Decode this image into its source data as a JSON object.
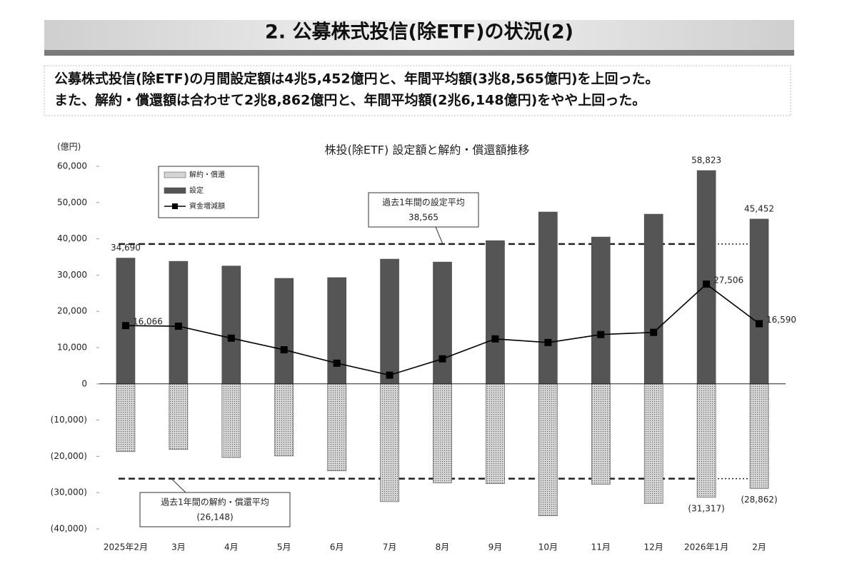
{
  "header": {
    "title": "2. 公募株式投信(除ETF)の状況(2)"
  },
  "summary": [
    "公募株式投信(除ETF)の月間設定額は4兆5,452億円と、年間平均額(3兆8,565億円)を上回った。",
    "また、解約・償還額は合わせて2兆8,862億円と、年間平均額(2兆6,148億円)をやや上回った。"
  ],
  "chart_data": {
    "type": "bar",
    "title": "株投(除ETF) 設定額と解約・償還額推移",
    "y_label": "(億円)",
    "categories": [
      "2025年2月",
      "3月",
      "4月",
      "5月",
      "6月",
      "7月",
      "8月",
      "9月",
      "10月",
      "11月",
      "12月",
      "2026年1月",
      "2月"
    ],
    "series": [
      {
        "name": "解約・償還",
        "type": "bar",
        "color": "#d4d4d4",
        "values": [
          -18700,
          -18100,
          -20300,
          -19900,
          -24000,
          -32500,
          -27300,
          -27500,
          -36400,
          -27700,
          -33000,
          -31317,
          -28862
        ],
        "value_labels": [
          null,
          null,
          null,
          null,
          null,
          null,
          null,
          null,
          null,
          null,
          null,
          "(31,317)",
          "(28,862)"
        ]
      },
      {
        "name": "設定",
        "type": "bar",
        "color": "#555555",
        "values": [
          34690,
          33800,
          32500,
          29100,
          29300,
          34400,
          33600,
          39500,
          47400,
          40500,
          46800,
          58823,
          45452
        ],
        "value_labels": [
          "34,690",
          null,
          null,
          null,
          null,
          null,
          null,
          null,
          null,
          null,
          null,
          "58,823",
          "45,452"
        ]
      },
      {
        "name": "資金増減額",
        "type": "line",
        "color": "#000000",
        "values": [
          16066,
          15900,
          12600,
          9400,
          5700,
          2400,
          6900,
          12400,
          11400,
          13600,
          14200,
          27506,
          16590
        ],
        "value_labels": [
          "16,066",
          null,
          null,
          null,
          null,
          null,
          null,
          null,
          null,
          null,
          null,
          "27,506",
          "16,590"
        ]
      }
    ],
    "reference_lines": [
      {
        "label": "過去1年間の設定平均",
        "value": 38565,
        "value_label": "38,565"
      },
      {
        "label": "過去1年間の解約・償還平均",
        "value": -26148,
        "value_label": "(26,148)"
      }
    ],
    "ylim": [
      -40000,
      60000
    ],
    "yticks": [
      {
        "value": -40000,
        "label": "(40,000)"
      },
      {
        "value": -30000,
        "label": "(30,000)"
      },
      {
        "value": -20000,
        "label": "(20,000)"
      },
      {
        "value": -10000,
        "label": "(10,000)"
      },
      0,
      {
        "value": 10000,
        "label": "10,000"
      },
      {
        "value": 20000,
        "label": "20,000"
      },
      {
        "value": 30000,
        "label": "30,000"
      },
      {
        "value": 40000,
        "label": "40,000"
      },
      {
        "value": 50000,
        "label": "50,000"
      },
      {
        "value": 60000,
        "label": "60,000"
      }
    ],
    "grid": false
  }
}
